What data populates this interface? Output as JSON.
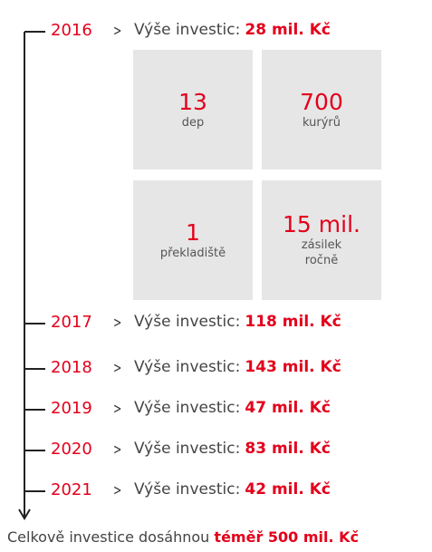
{
  "timeline": {
    "separator": ">",
    "entries": [
      {
        "year": "2016",
        "label": "Výše investic:",
        "amount": "28 mil. Kč"
      },
      {
        "year": "2017",
        "label": "Výše investic:",
        "amount": "118 mil. Kč"
      },
      {
        "year": "2018",
        "label": "Výše investic:",
        "amount": "143 mil. Kč"
      },
      {
        "year": "2019",
        "label": "Výše investic:",
        "amount": "47 mil. Kč"
      },
      {
        "year": "2020",
        "label": "Výše investic:",
        "amount": "83 mil. Kč"
      },
      {
        "year": "2021",
        "label": "Výše investic:",
        "amount": "42 mil. Kč"
      }
    ],
    "boxes": [
      {
        "number": "13",
        "lines": [
          "dep"
        ]
      },
      {
        "number": "700",
        "lines": [
          "kurýrů"
        ]
      },
      {
        "number": "1",
        "lines": [
          "překladiště"
        ]
      },
      {
        "number": "15 mil.",
        "lines": [
          "zásilek",
          "ročně"
        ]
      }
    ]
  },
  "footer": {
    "text": "Celkově investice dosáhnou",
    "highlight": "téměř 500 mil. Kč"
  }
}
